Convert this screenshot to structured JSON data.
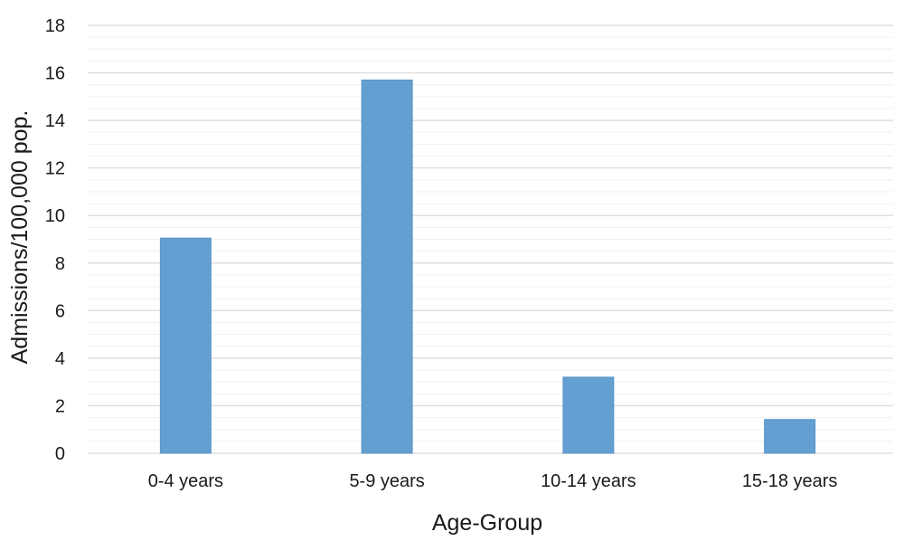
{
  "chart_data": {
    "type": "bar",
    "title": "",
    "categories": [
      "0-4 years",
      "5-9 years",
      "10-14 years",
      "15-18 years"
    ],
    "values": [
      9.05,
      15.7,
      3.2,
      1.42
    ],
    "xlabel": "Age-Group",
    "ylabel": "Admissions/100,000 pop.",
    "ylim": [
      0,
      18
    ],
    "yticks": [
      "0",
      "2",
      "4",
      "6",
      "8",
      "10",
      "12",
      "14",
      "16",
      "18"
    ],
    "grid": true,
    "legend": "none",
    "bar_color": "#649FD1",
    "gridline_color": "#d9d9d9"
  }
}
